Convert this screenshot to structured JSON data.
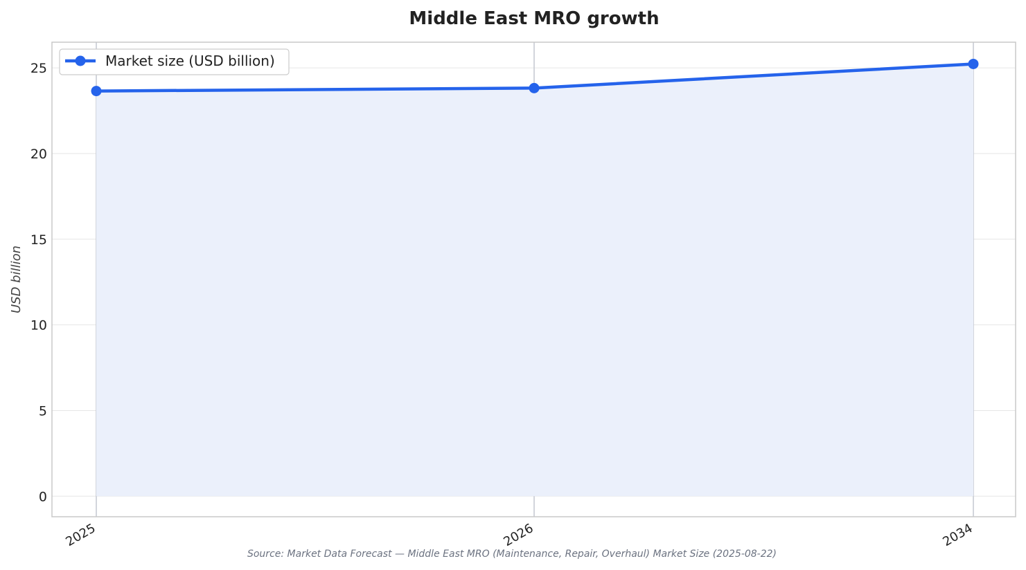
{
  "chart_data": {
    "type": "line",
    "title": "Middle East MRO growth",
    "xlabel": "",
    "ylabel": "USD billion",
    "categories": [
      "2025",
      "2026",
      "2034"
    ],
    "series": [
      {
        "name": "Market size (USD billion)",
        "values": [
          23.65,
          23.82,
          25.23
        ]
      }
    ],
    "ylim": [
      -1.2,
      26.5
    ],
    "yticks": [
      0,
      5,
      10,
      15,
      20,
      25
    ],
    "grid": true,
    "legend": "top-left",
    "area_fill": true,
    "colors": {
      "line": "#2563eb",
      "fill": "#ebf0fb",
      "grid": "#e6e6e6",
      "frame": "#c8c8c8"
    },
    "source": "Source: Market Data Forecast — Middle East MRO (Maintenance, Repair, Overhaul) Market Size (2025-08-22)"
  }
}
